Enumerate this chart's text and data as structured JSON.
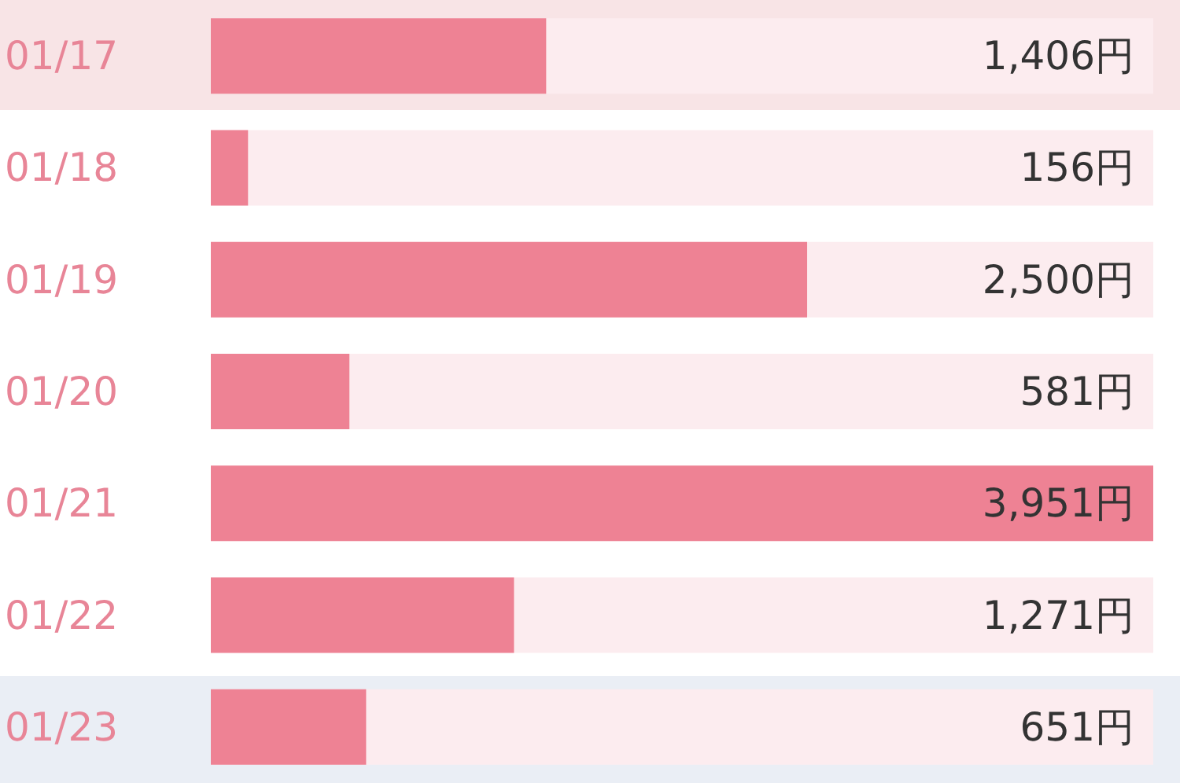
{
  "chart_data": {
    "type": "bar",
    "orientation": "horizontal",
    "categories": [
      "01/17",
      "01/18",
      "01/19",
      "01/20",
      "01/21",
      "01/22",
      "01/23"
    ],
    "values": [
      1406,
      156,
      2500,
      581,
      3951,
      1271,
      651
    ],
    "value_labels": [
      "1,406円",
      "156円",
      "2,500円",
      "581円",
      "3,951円",
      "1,271円",
      "651円"
    ],
    "color": "#ee8294",
    "tick_labels": "y"
  }
}
